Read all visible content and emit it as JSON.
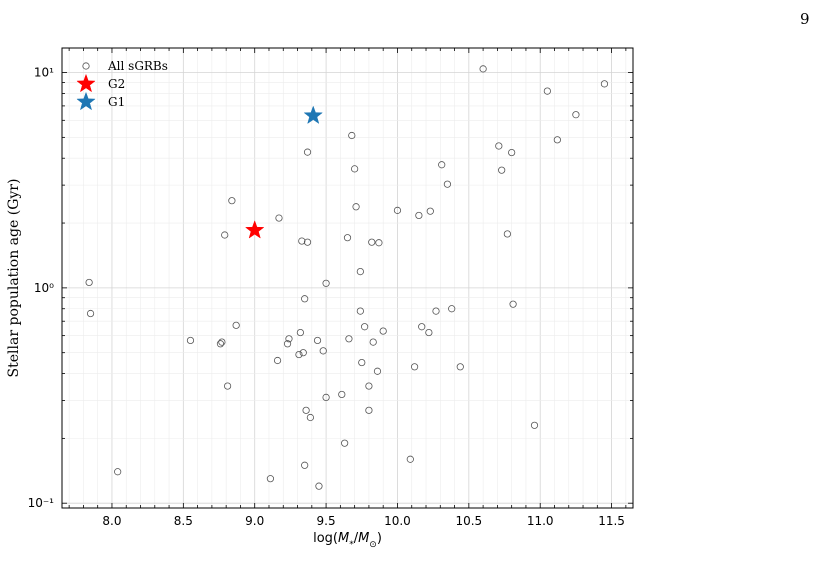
{
  "page": {
    "number": "9"
  },
  "chart_data": {
    "type": "scatter",
    "xlabel": "log(M*/M⊙)",
    "ylabel": "Stellar population age (Gyr)",
    "xlim": [
      7.65,
      11.65
    ],
    "ylim": [
      0.095,
      13.0
    ],
    "yscale": "log",
    "grid": true,
    "legend_position": "top-left",
    "x_ticks": [
      8.0,
      8.5,
      9.0,
      9.5,
      10.0,
      10.5,
      11.0,
      11.5
    ],
    "x_tick_labels": [
      "8.0",
      "8.5",
      "9.0",
      "9.5",
      "10.0",
      "10.5",
      "11.0",
      "11.5"
    ],
    "y_ticks": [
      0.1,
      1,
      10
    ],
    "y_tick_labels": [
      "10⁻¹",
      "10⁰",
      "10¹"
    ],
    "series": [
      {
        "name": "All sGRBs",
        "marker": "open-circle",
        "color": "#555555",
        "points": [
          [
            7.84,
            1.06
          ],
          [
            7.85,
            0.76
          ],
          [
            8.04,
            0.14
          ],
          [
            8.55,
            0.57
          ],
          [
            8.76,
            0.55
          ],
          [
            8.77,
            0.56
          ],
          [
            8.79,
            1.76
          ],
          [
            8.81,
            0.35
          ],
          [
            8.84,
            2.54
          ],
          [
            8.87,
            0.67
          ],
          [
            9.11,
            0.13
          ],
          [
            9.16,
            0.46
          ],
          [
            9.17,
            2.11
          ],
          [
            9.23,
            0.55
          ],
          [
            9.24,
            0.58
          ],
          [
            9.31,
            0.49
          ],
          [
            9.32,
            0.62
          ],
          [
            9.33,
            1.65
          ],
          [
            9.34,
            0.5
          ],
          [
            9.35,
            0.89
          ],
          [
            9.35,
            0.15
          ],
          [
            9.36,
            0.27
          ],
          [
            9.37,
            1.63
          ],
          [
            9.37,
            4.27
          ],
          [
            9.39,
            0.25
          ],
          [
            9.44,
            0.57
          ],
          [
            9.45,
            0.12
          ],
          [
            9.48,
            0.51
          ],
          [
            9.5,
            1.05
          ],
          [
            9.5,
            0.31
          ],
          [
            9.61,
            0.32
          ],
          [
            9.63,
            0.19
          ],
          [
            9.65,
            1.71
          ],
          [
            9.66,
            0.58
          ],
          [
            9.68,
            5.1
          ],
          [
            9.7,
            3.57
          ],
          [
            9.71,
            2.38
          ],
          [
            9.74,
            1.19
          ],
          [
            9.74,
            0.78
          ],
          [
            9.75,
            0.45
          ],
          [
            9.77,
            0.66
          ],
          [
            9.8,
            0.35
          ],
          [
            9.8,
            0.27
          ],
          [
            9.82,
            1.63
          ],
          [
            9.83,
            0.56
          ],
          [
            9.86,
            0.41
          ],
          [
            9.87,
            1.62
          ],
          [
            9.9,
            0.63
          ],
          [
            10.0,
            2.29
          ],
          [
            10.09,
            0.16
          ],
          [
            10.12,
            0.43
          ],
          [
            10.15,
            2.17
          ],
          [
            10.17,
            0.66
          ],
          [
            10.22,
            0.62
          ],
          [
            10.23,
            2.27
          ],
          [
            10.27,
            0.78
          ],
          [
            10.31,
            3.73
          ],
          [
            10.35,
            3.03
          ],
          [
            10.38,
            0.8
          ],
          [
            10.44,
            0.43
          ],
          [
            10.6,
            10.4
          ],
          [
            10.71,
            4.56
          ],
          [
            10.73,
            3.52
          ],
          [
            10.77,
            1.78
          ],
          [
            10.8,
            4.25
          ],
          [
            10.81,
            0.84
          ],
          [
            10.96,
            0.23
          ],
          [
            11.05,
            8.2
          ],
          [
            11.12,
            4.87
          ],
          [
            11.25,
            6.37
          ],
          [
            11.45,
            8.86
          ]
        ]
      },
      {
        "name": "G2",
        "marker": "star",
        "color": "#ff0000",
        "points": [
          [
            9.0,
            1.85
          ]
        ]
      },
      {
        "name": "G1",
        "marker": "star",
        "color": "#1f77b4",
        "points": [
          [
            9.41,
            6.3
          ]
        ]
      }
    ]
  }
}
